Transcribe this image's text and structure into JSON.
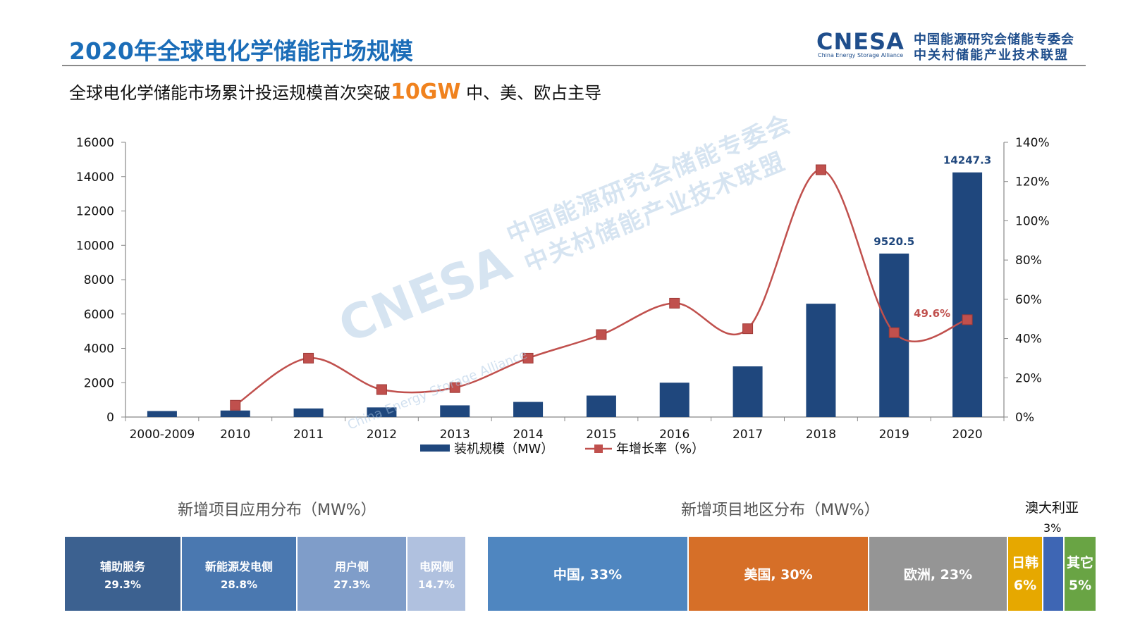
{
  "header": {
    "title": "2020年全球电化学储能市场规模",
    "subtitle_prefix": "全球电化学储能市场累计投运规模首次突破",
    "subtitle_highlight": "10GW",
    "subtitle_suffix": "  中、美、欧占主导"
  },
  "logo": {
    "brand": "CNESA",
    "brand_sub": "China Energy Storage Alliance",
    "org_line1": "中国能源研究会储能专委会",
    "org_line2": "中关村储能产业技术联盟"
  },
  "watermark": {
    "brand": "CNESA",
    "line1": "中国能源研究会储能专委会",
    "line2": "中关村储能产业技术联盟",
    "sub": "China Energy Storage Alliance"
  },
  "chart_data": [
    {
      "type": "bar",
      "categories": [
        "2000-2009",
        "2010",
        "2011",
        "2012",
        "2013",
        "2014",
        "2015",
        "2016",
        "2017",
        "2018",
        "2019",
        "2020"
      ],
      "series": [
        {
          "name": "装机规模（MW）",
          "axis": "left",
          "color": "#1f477d",
          "values": [
            350,
            380,
            500,
            560,
            680,
            880,
            1250,
            2000,
            2950,
            6600,
            9520.5,
            14247.3
          ]
        },
        {
          "name": "年增长率（%）",
          "axis": "right",
          "type": "line",
          "color": "#c0504d",
          "values": [
            null,
            6,
            30,
            14,
            15,
            30,
            42,
            58,
            45,
            126,
            43,
            49.6
          ]
        }
      ],
      "data_labels": [
        {
          "category": "2019",
          "series": 0,
          "text": "9520.5"
        },
        {
          "category": "2020",
          "series": 0,
          "text": "14247.3"
        },
        {
          "category": "2020",
          "series": 1,
          "text": "49.6%"
        }
      ],
      "left_axis": {
        "ylim": [
          0,
          16000
        ],
        "ticks": [
          "0",
          "2000",
          "4000",
          "6000",
          "8000",
          "10000",
          "12000",
          "14000",
          "16000"
        ]
      },
      "right_axis": {
        "ylim": [
          0,
          140
        ],
        "ticks": [
          "0%",
          "20%",
          "40%",
          "60%",
          "80%",
          "100%",
          "120%",
          "140%"
        ]
      },
      "legend_position": "bottom",
      "grid": false
    },
    {
      "type": "bar",
      "orientation": "stacked-horizontal-100",
      "title": "新增项目应用分布（MW%）",
      "categories": [
        "辅助服务",
        "新能源发电侧",
        "用户侧",
        "电网侧"
      ],
      "values": [
        29.3,
        28.8,
        27.3,
        14.7
      ],
      "labels": [
        "29.3%",
        "28.8%",
        "27.3%",
        "14.7%"
      ],
      "colors": [
        "#3c6190",
        "#4a78b0",
        "#7f9dc9",
        "#b0c1df"
      ]
    },
    {
      "type": "bar",
      "orientation": "stacked-horizontal-100",
      "title": "新增项目地区分布（MW%）",
      "categories": [
        "中国",
        "美国",
        "欧洲",
        "日韩",
        "澳大利亚",
        "其它"
      ],
      "values": [
        33,
        30,
        23,
        6,
        3,
        5
      ],
      "labels": [
        "中国, 33%",
        "美国, 30%",
        "欧洲, 23%",
        "6%",
        "3%",
        "5%"
      ],
      "colors": [
        "#4f86c0",
        "#d66f28",
        "#959595",
        "#e6a800",
        "#3e66b4",
        "#69a444"
      ]
    }
  ]
}
